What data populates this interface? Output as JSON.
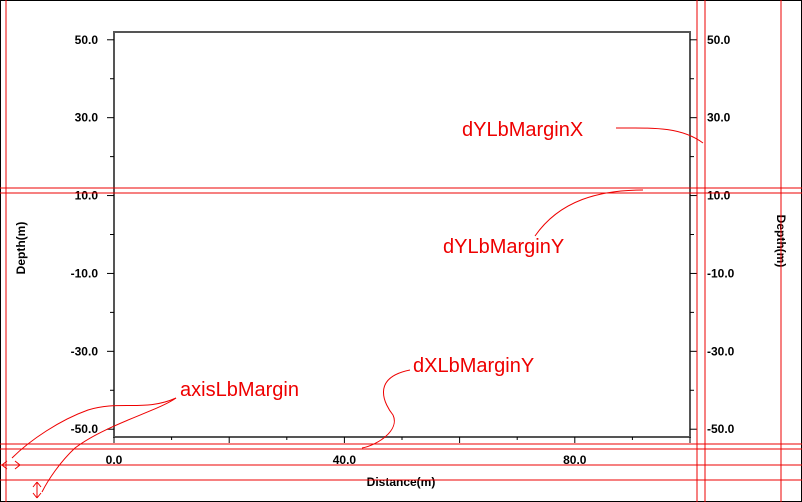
{
  "chart": {
    "x_axis": {
      "title": "Distance(m)",
      "range": [
        0,
        100
      ],
      "labels": [
        {
          "value": 0,
          "text": "0.0"
        },
        {
          "value": 40,
          "text": "40.0"
        },
        {
          "value": 80,
          "text": "80.0"
        }
      ],
      "major_ticks": [
        0,
        20,
        40,
        60,
        80,
        100
      ],
      "minor_ticks": [
        10,
        30,
        50,
        70,
        90
      ]
    },
    "y_axis": {
      "title": "Depth(m)",
      "right_title": "Depth(m)",
      "range": [
        -52,
        52
      ],
      "labels": [
        {
          "value": 50,
          "text": "50.0"
        },
        {
          "value": 30,
          "text": "30.0"
        },
        {
          "value": 10,
          "text": "10.0"
        },
        {
          "value": -10,
          "text": "-10.0"
        },
        {
          "value": -30,
          "text": "-30.0"
        },
        {
          "value": -50,
          "text": "-50.0"
        }
      ],
      "minor_ticks": [
        40,
        20,
        0,
        -20,
        -40
      ]
    }
  },
  "annotations": {
    "dYLbMarginX": "dYLbMarginX",
    "dYLbMarginY": "dYLbMarginY",
    "dXLbMarginY": "dXLbMarginY",
    "axisLbMargin": "axisLbMargin"
  },
  "colors": {
    "annotation": "#ee0000",
    "axis": "#000000",
    "plot_border": "#555555"
  }
}
